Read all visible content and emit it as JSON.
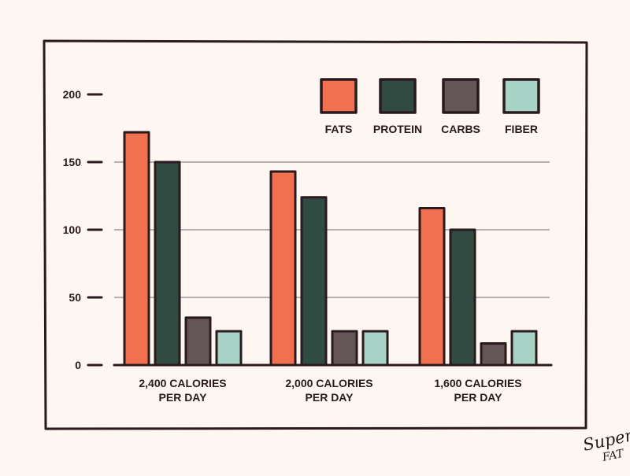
{
  "chart_data": {
    "type": "bar",
    "title": "",
    "xlabel": "",
    "ylabel": "",
    "ylim": [
      0,
      200
    ],
    "yticks": [
      0,
      50,
      100,
      150,
      200
    ],
    "grid": true,
    "categories": [
      [
        "2,400 CALORIES",
        "PER DAY"
      ],
      [
        "2,000 CALORIES",
        "PER DAY"
      ],
      [
        "1,600 CALORIES",
        "PER DAY"
      ]
    ],
    "series": [
      {
        "name": "FATS",
        "color": "#f07050",
        "values": [
          172,
          143,
          116
        ]
      },
      {
        "name": "PROTEIN",
        "color": "#2f4b42",
        "values": [
          150,
          124,
          100
        ]
      },
      {
        "name": "CARBS",
        "color": "#645656",
        "values": [
          35,
          25,
          16
        ]
      },
      {
        "name": "FIBER",
        "color": "#a6d3c6",
        "values": [
          25,
          25,
          25
        ]
      }
    ],
    "legend_position": "top-right"
  },
  "brand": {
    "line1": "Super",
    "line2": "FAT"
  },
  "colors": {
    "background": "#fdf6f1",
    "ink": "#2a1a1e",
    "grid": "#8f8686"
  }
}
